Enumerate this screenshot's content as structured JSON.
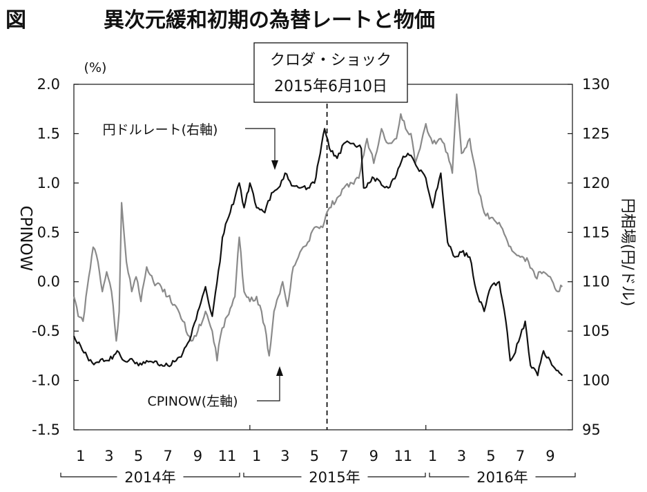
{
  "header": {
    "figure_label": "図",
    "title": "異次元緩和初期の為替レートと物価"
  },
  "chart_data": {
    "type": "line",
    "title": "異次元緩和初期の為替レートと物価",
    "unit_left": "(%)",
    "ylabel_left": "CPINOW",
    "ylabel_right": "円相場(円/ドル)",
    "ylim_left": [
      -1.5,
      2.0
    ],
    "ylim_right": [
      95,
      130
    ],
    "yticks_left": [
      "2.0",
      "1.5",
      "1.0",
      "0.5",
      "0.0",
      "-0.5",
      "-1.0",
      "-1.5"
    ],
    "yticks_right": [
      "130",
      "125",
      "120",
      "115",
      "110",
      "105",
      "100",
      "95"
    ],
    "xticks": [
      "1",
      "3",
      "5",
      "7",
      "9",
      "11",
      "1",
      "3",
      "5",
      "7",
      "9",
      "11",
      "1",
      "3",
      "5",
      "7",
      "9"
    ],
    "year_labels": [
      "2014年",
      "2015年",
      "2016年"
    ],
    "event": {
      "line1": "クロダ・ショック",
      "line2": "2015年6月10日",
      "date": "2015-06-10"
    },
    "annotations": {
      "yen": "円ドルレート(右軸)",
      "cpi": "CPINOW(左軸)"
    },
    "series": [
      {
        "name": "円ドルレート",
        "axis": "right",
        "color": "#111111",
        "points": [
          [
            "2014-01-01",
            104.5
          ],
          [
            "2014-01-15",
            103.5
          ],
          [
            "2014-02-01",
            102.0
          ],
          [
            "2014-02-15",
            101.8
          ],
          [
            "2014-03-01",
            102.2
          ],
          [
            "2014-03-15",
            102.0
          ],
          [
            "2014-04-01",
            103.0
          ],
          [
            "2014-04-15",
            102.0
          ],
          [
            "2014-05-01",
            102.2
          ],
          [
            "2014-05-15",
            101.5
          ],
          [
            "2014-06-01",
            102.0
          ],
          [
            "2014-06-15",
            101.8
          ],
          [
            "2014-07-01",
            101.6
          ],
          [
            "2014-07-15",
            101.5
          ],
          [
            "2014-08-01",
            102.0
          ],
          [
            "2014-08-15",
            102.8
          ],
          [
            "2014-09-01",
            104.5
          ],
          [
            "2014-09-15",
            107.0
          ],
          [
            "2014-10-01",
            109.5
          ],
          [
            "2014-10-15",
            106.5
          ],
          [
            "2014-10-31",
            112.0
          ],
          [
            "2014-11-05",
            114.5
          ],
          [
            "2014-11-15",
            116.2
          ],
          [
            "2014-12-01",
            118.5
          ],
          [
            "2014-12-10",
            120.0
          ],
          [
            "2014-12-20",
            117.5
          ],
          [
            "2015-01-01",
            120.0
          ],
          [
            "2015-01-15",
            117.5
          ],
          [
            "2015-02-01",
            117.0
          ],
          [
            "2015-02-15",
            119.0
          ],
          [
            "2015-03-01",
            119.5
          ],
          [
            "2015-03-15",
            121.0
          ],
          [
            "2015-04-01",
            119.7
          ],
          [
            "2015-04-15",
            119.5
          ],
          [
            "2015-05-01",
            119.5
          ],
          [
            "2015-05-15",
            120.0
          ],
          [
            "2015-05-27",
            123.0
          ],
          [
            "2015-06-05",
            125.5
          ],
          [
            "2015-06-15",
            123.5
          ],
          [
            "2015-07-01",
            122.5
          ],
          [
            "2015-07-15",
            124.0
          ],
          [
            "2015-08-01",
            124.0
          ],
          [
            "2015-08-20",
            123.5
          ],
          [
            "2015-08-25",
            119.5
          ],
          [
            "2015-09-15",
            120.5
          ],
          [
            "2015-10-01",
            119.8
          ],
          [
            "2015-10-15",
            119.5
          ],
          [
            "2015-11-01",
            120.8
          ],
          [
            "2015-11-15",
            122.7
          ],
          [
            "2015-12-01",
            122.8
          ],
          [
            "2015-12-15",
            121.5
          ],
          [
            "2016-01-01",
            120.5
          ],
          [
            "2016-01-15",
            117.5
          ],
          [
            "2016-02-01",
            121.0
          ],
          [
            "2016-02-15",
            114.0
          ],
          [
            "2016-03-01",
            112.5
          ],
          [
            "2016-03-15",
            113.0
          ],
          [
            "2016-04-01",
            112.5
          ],
          [
            "2016-04-15",
            109.0
          ],
          [
            "2016-05-01",
            107.0
          ],
          [
            "2016-05-15",
            109.5
          ],
          [
            "2016-06-01",
            110.0
          ],
          [
            "2016-06-15",
            106.0
          ],
          [
            "2016-06-24",
            102.0
          ],
          [
            "2016-07-01",
            102.5
          ],
          [
            "2016-07-15",
            104.5
          ],
          [
            "2016-07-25",
            106.0
          ],
          [
            "2016-08-05",
            101.5
          ],
          [
            "2016-08-20",
            100.5
          ],
          [
            "2016-09-01",
            103.0
          ],
          [
            "2016-09-15",
            102.0
          ],
          [
            "2016-10-01",
            101.0
          ],
          [
            "2016-10-10",
            100.5
          ]
        ]
      },
      {
        "name": "CPINOW",
        "axis": "left",
        "color": "#8a8a8a",
        "points": [
          [
            "2014-01-01",
            -0.15
          ],
          [
            "2014-01-10",
            -0.35
          ],
          [
            "2014-01-20",
            -0.4
          ],
          [
            "2014-02-01",
            0.05
          ],
          [
            "2014-02-10",
            0.35
          ],
          [
            "2014-02-20",
            0.2
          ],
          [
            "2014-03-01",
            -0.1
          ],
          [
            "2014-03-10",
            0.1
          ],
          [
            "2014-03-20",
            -0.1
          ],
          [
            "2014-03-30",
            -0.6
          ],
          [
            "2014-04-05",
            -0.3
          ],
          [
            "2014-04-10",
            0.8
          ],
          [
            "2014-04-20",
            0.2
          ],
          [
            "2014-05-01",
            -0.1
          ],
          [
            "2014-05-10",
            0.05
          ],
          [
            "2014-05-20",
            -0.2
          ],
          [
            "2014-06-01",
            0.15
          ],
          [
            "2014-06-15",
            0.0
          ],
          [
            "2014-07-01",
            -0.05
          ],
          [
            "2014-07-15",
            -0.15
          ],
          [
            "2014-08-01",
            -0.25
          ],
          [
            "2014-08-15",
            -0.4
          ],
          [
            "2014-09-01",
            -0.6
          ],
          [
            "2014-09-15",
            -0.5
          ],
          [
            "2014-10-01",
            -0.3
          ],
          [
            "2014-10-15",
            -0.5
          ],
          [
            "2014-10-25",
            -0.8
          ],
          [
            "2014-11-01",
            -0.55
          ],
          [
            "2014-11-15",
            -0.35
          ],
          [
            "2014-12-01",
            -0.15
          ],
          [
            "2014-12-10",
            0.45
          ],
          [
            "2014-12-20",
            -0.1
          ],
          [
            "2015-01-01",
            -0.2
          ],
          [
            "2015-01-15",
            -0.15
          ],
          [
            "2015-02-01",
            -0.45
          ],
          [
            "2015-02-10",
            -0.75
          ],
          [
            "2015-02-20",
            -0.3
          ],
          [
            "2015-03-01",
            -0.15
          ],
          [
            "2015-03-10",
            0.0
          ],
          [
            "2015-03-20",
            -0.25
          ],
          [
            "2015-04-01",
            0.15
          ],
          [
            "2015-04-15",
            0.3
          ],
          [
            "2015-05-01",
            0.4
          ],
          [
            "2015-05-15",
            0.55
          ],
          [
            "2015-06-01",
            0.55
          ],
          [
            "2015-06-15",
            0.75
          ],
          [
            "2015-07-01",
            0.85
          ],
          [
            "2015-07-15",
            0.95
          ],
          [
            "2015-08-01",
            1.0
          ],
          [
            "2015-08-15",
            1.05
          ],
          [
            "2015-09-01",
            1.45
          ],
          [
            "2015-09-15",
            1.2
          ],
          [
            "2015-10-01",
            1.55
          ],
          [
            "2015-10-15",
            1.4
          ],
          [
            "2015-11-01",
            1.45
          ],
          [
            "2015-11-10",
            1.7
          ],
          [
            "2015-11-20",
            1.55
          ],
          [
            "2015-12-01",
            1.5
          ],
          [
            "2015-12-10",
            1.2
          ],
          [
            "2015-12-20",
            1.35
          ],
          [
            "2016-01-01",
            1.6
          ],
          [
            "2016-01-15",
            1.4
          ],
          [
            "2016-02-01",
            1.45
          ],
          [
            "2016-02-15",
            1.3
          ],
          [
            "2016-02-25",
            1.1
          ],
          [
            "2016-03-05",
            1.9
          ],
          [
            "2016-03-15",
            1.3
          ],
          [
            "2016-04-01",
            1.45
          ],
          [
            "2016-04-10",
            1.2
          ],
          [
            "2016-04-20",
            0.9
          ],
          [
            "2016-05-01",
            0.7
          ],
          [
            "2016-05-15",
            0.65
          ],
          [
            "2016-06-01",
            0.6
          ],
          [
            "2016-06-15",
            0.45
          ],
          [
            "2016-07-01",
            0.3
          ],
          [
            "2016-07-15",
            0.25
          ],
          [
            "2016-08-01",
            0.2
          ],
          [
            "2016-08-15",
            0.05
          ],
          [
            "2016-09-01",
            0.1
          ],
          [
            "2016-09-15",
            0.05
          ],
          [
            "2016-10-01",
            -0.1
          ],
          [
            "2016-10-10",
            -0.05
          ]
        ]
      }
    ]
  }
}
